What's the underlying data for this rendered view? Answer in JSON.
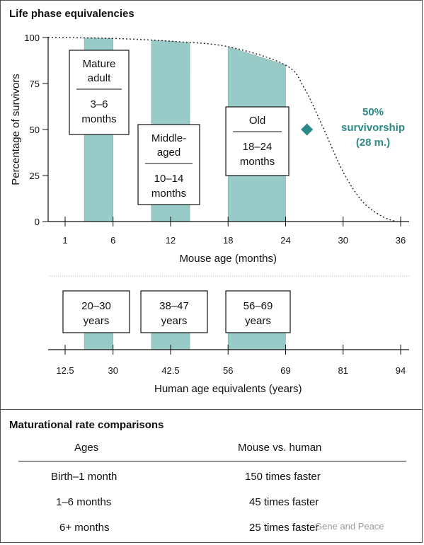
{
  "chart_data": {
    "type": "area",
    "title": "Life phase equivalencies",
    "ylabel": "Percentage of survivors",
    "xlabel": "Mouse age (months)",
    "yticks": [
      0,
      25,
      50,
      75,
      100
    ],
    "ylim": [
      0,
      100
    ],
    "xticks": [
      1,
      6,
      12,
      18,
      24,
      30,
      36
    ],
    "xlim": [
      1,
      36
    ],
    "series": [
      {
        "x": [
          0,
          6,
          12,
          18,
          24,
          26,
          28,
          30,
          32,
          34,
          35.5
        ],
        "y": [
          100,
          99.5,
          98,
          95,
          85,
          72,
          50,
          27,
          11,
          3,
          0
        ]
      }
    ],
    "phases": [
      {
        "label": "Mature adult",
        "range_label": "3–6 months",
        "start": 3,
        "end": 6,
        "human_label": "20–30 years"
      },
      {
        "label": "Middle-aged",
        "range_label": "10–14 months",
        "start": 10,
        "end": 14,
        "human_label": "38–47 years"
      },
      {
        "label": "Old",
        "range_label": "18–24 months",
        "start": 18,
        "end": 24,
        "human_label": "56–69 years"
      }
    ],
    "annotation": {
      "text_line1": "50%",
      "text_line2": "survivorship",
      "text_line3": "(28 m.)",
      "x": 28,
      "y": 50
    },
    "human_axis": {
      "label": "Human age equivalents (years)",
      "ticks": [
        {
          "mouse_month": 1,
          "label": "12.5"
        },
        {
          "mouse_month": 6,
          "label": "30"
        },
        {
          "mouse_month": 12,
          "label": "42.5"
        },
        {
          "mouse_month": 18,
          "label": "56"
        },
        {
          "mouse_month": 24,
          "label": "69"
        },
        {
          "mouse_month": 30,
          "label": "81"
        },
        {
          "mouse_month": 36,
          "label": "94"
        }
      ]
    },
    "colors": {
      "band": "#98cbc8",
      "annotation": "#2a8a88",
      "curve": "#222222"
    }
  },
  "table": {
    "title": "Maturational rate comparisons",
    "headers": [
      "Ages",
      "Mouse vs. human"
    ],
    "rows": [
      [
        "Birth–1 month",
        "150 times faster"
      ],
      [
        "1–6 months",
        "45 times faster"
      ],
      [
        "6+ months",
        "25 times faster"
      ]
    ]
  },
  "watermark": "Gene and Peace"
}
